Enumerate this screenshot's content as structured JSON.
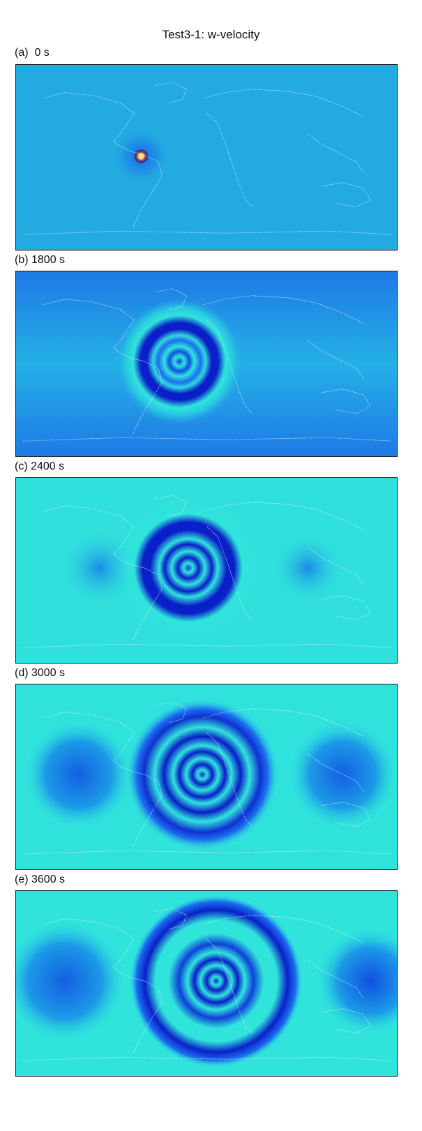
{
  "figure": {
    "title": "Test3-1: w-velocity"
  },
  "panels": [
    {
      "label": "(a)  0 s",
      "time_s": 0
    },
    {
      "label": "(b) 1800 s",
      "time_s": 1800
    },
    {
      "label": "(c) 2400 s",
      "time_s": 2400
    },
    {
      "label": "(d) 3000 s",
      "time_s": 3000
    },
    {
      "label": "(e) 3600 s",
      "time_s": 3600
    }
  ],
  "colors": {
    "background_initial": "#1fa8e0",
    "cyan_field": "#30e4dc",
    "ring_dark": "#0a1ec8",
    "ring_mid": "#1c6ef0",
    "source_center": "#e8c060",
    "source_ring": "#c04040",
    "coastline": "#d8eef7"
  }
}
